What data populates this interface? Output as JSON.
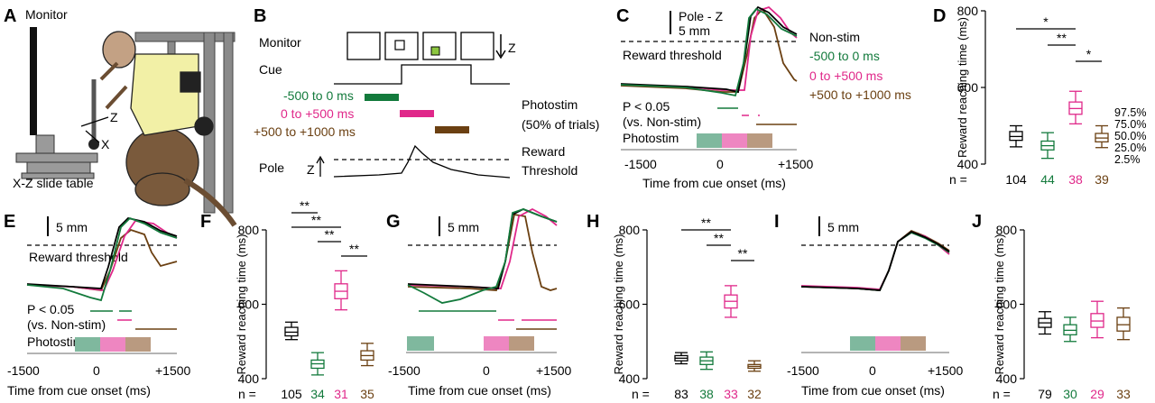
{
  "panel_letters": [
    "A",
    "B",
    "C",
    "D",
    "E",
    "F",
    "G",
    "H",
    "I",
    "J"
  ],
  "colors": {
    "nonstim": "#000000",
    "early": "#137a3c",
    "mid": "#e0288a",
    "late": "#6b4012",
    "early_fill": "#7fb89e",
    "mid_fill": "#ee86c1",
    "late_fill": "#b99a80"
  },
  "panel_a": {
    "monitor_label": "Monitor",
    "axis_z": "Z",
    "axis_x": "X",
    "slide_table_label": "X-Z slide table"
  },
  "panel_b": {
    "monitor_label": "Monitor",
    "z_label": "Z",
    "cue_label": "Cue",
    "windows": [
      "-500 to 0 ms",
      "0 to +500 ms",
      "+500 to +1000 ms"
    ],
    "photostim_label": "Photostim",
    "photostim_sub": "(50% of trials)",
    "pole_label": "Pole",
    "pole_z": "Z",
    "reward_label": "Reward",
    "threshold_label": "Threshold"
  },
  "panel_c": {
    "scale_label": "Pole - Z",
    "scale_value": "5 mm",
    "reward_threshold": "Reward threshold",
    "legend": [
      "Non-stim",
      "-500 to 0 ms",
      "0 to +500 ms",
      "+500 to +1000 ms"
    ],
    "pval": "P < 0.05",
    "pval_sub": "(vs. Non-stim)",
    "photostim": "Photostim",
    "xticks": [
      "-1500",
      "0",
      "+1500"
    ],
    "xlabel": "Time from cue onset (ms)"
  },
  "panel_e": {
    "scale_value": "5 mm",
    "reward_threshold": "Reward threshold",
    "pval": "P < 0.05",
    "pval_sub": "(vs. Non-stim)",
    "photostim": "Photostim",
    "xticks": [
      "-1500",
      "0",
      "+1500"
    ],
    "xlabel": "Time from cue onset (ms)"
  },
  "panel_g": {
    "scale_value": "5 mm",
    "xticks": [
      "-1500",
      "0",
      "+1500"
    ],
    "xlabel": "Time from cue onset (ms)"
  },
  "panel_i": {
    "scale_value": "5 mm",
    "xticks": [
      "-1500",
      "0",
      "+1500"
    ],
    "xlabel": "Time from cue onset (ms)"
  },
  "quantile_labels": [
    "97.5%",
    "75.0%",
    "50.0%",
    "25.0%",
    "2.5%"
  ],
  "n_prefix": "n =",
  "chart_data": [
    {
      "type": "box",
      "panel": "D",
      "ylabel": "Reward reaching time (ms)",
      "ylim": [
        400,
        800
      ],
      "yticks": [
        "400",
        "600",
        "800"
      ],
      "n": [
        "104",
        "44",
        "38",
        "39"
      ],
      "boxes": [
        {
          "p2_5": 445,
          "p25": 462,
          "p50": 472,
          "p75": 485,
          "p97_5": 500
        },
        {
          "p2_5": 415,
          "p25": 437,
          "p50": 448,
          "p75": 460,
          "p97_5": 482
        },
        {
          "p2_5": 505,
          "p25": 530,
          "p50": 545,
          "p75": 562,
          "p97_5": 590
        },
        {
          "p2_5": 443,
          "p25": 458,
          "p50": 468,
          "p75": 480,
          "p97_5": 500
        }
      ],
      "significance": [
        {
          "from": 0,
          "to": 2,
          "label": "*"
        },
        {
          "from": 1,
          "to": 2,
          "label": "**"
        },
        {
          "from": 2,
          "to": 3,
          "label": "*"
        }
      ]
    },
    {
      "type": "box",
      "panel": "F",
      "ylabel": "Reward reaching time (ms)",
      "ylim": [
        400,
        800
      ],
      "yticks": [
        "400",
        "600",
        "800"
      ],
      "n": [
        "105",
        "34",
        "31",
        "35"
      ],
      "boxes": [
        {
          "p2_5": 505,
          "p25": 515,
          "p50": 525,
          "p75": 538,
          "p97_5": 552
        },
        {
          "p2_5": 410,
          "p25": 428,
          "p50": 440,
          "p75": 450,
          "p97_5": 470
        },
        {
          "p2_5": 585,
          "p25": 615,
          "p50": 635,
          "p75": 655,
          "p97_5": 690
        },
        {
          "p2_5": 435,
          "p25": 450,
          "p50": 462,
          "p75": 475,
          "p97_5": 495
        }
      ],
      "significance": [
        {
          "from": 0,
          "to": 1,
          "label": "**"
        },
        {
          "from": 0,
          "to": 2,
          "label": "**"
        },
        {
          "from": 1,
          "to": 2,
          "label": "**"
        },
        {
          "from": 2,
          "to": 3,
          "label": "**"
        }
      ]
    },
    {
      "type": "box",
      "panel": "H",
      "ylabel": "Reward reaching time (ms)",
      "ylim": [
        400,
        800
      ],
      "yticks": [
        "400",
        "600",
        "800"
      ],
      "n": [
        "83",
        "38",
        "33",
        "32"
      ],
      "boxes": [
        {
          "p2_5": 440,
          "p25": 448,
          "p50": 455,
          "p75": 462,
          "p97_5": 470
        },
        {
          "p2_5": 425,
          "p25": 438,
          "p50": 448,
          "p75": 458,
          "p97_5": 472
        },
        {
          "p2_5": 565,
          "p25": 590,
          "p50": 608,
          "p75": 625,
          "p97_5": 650
        },
        {
          "p2_5": 420,
          "p25": 428,
          "p50": 433,
          "p75": 438,
          "p97_5": 448
        }
      ],
      "significance": [
        {
          "from": 0,
          "to": 2,
          "label": "**"
        },
        {
          "from": 1,
          "to": 2,
          "label": "**"
        },
        {
          "from": 2,
          "to": 3,
          "label": "**"
        }
      ]
    },
    {
      "type": "box",
      "panel": "J",
      "ylabel": "Reward reaching time (ms)",
      "ylim": [
        400,
        800
      ],
      "yticks": [
        "400",
        "600",
        "800"
      ],
      "n": [
        "79",
        "30",
        "29",
        "33"
      ],
      "boxes": [
        {
          "p2_5": 520,
          "p25": 538,
          "p50": 550,
          "p75": 562,
          "p97_5": 580
        },
        {
          "p2_5": 500,
          "p25": 518,
          "p50": 530,
          "p75": 545,
          "p97_5": 565
        },
        {
          "p2_5": 510,
          "p25": 538,
          "p50": 555,
          "p75": 575,
          "p97_5": 608
        },
        {
          "p2_5": 505,
          "p25": 528,
          "p50": 545,
          "p75": 565,
          "p97_5": 590
        }
      ],
      "significance": []
    }
  ]
}
